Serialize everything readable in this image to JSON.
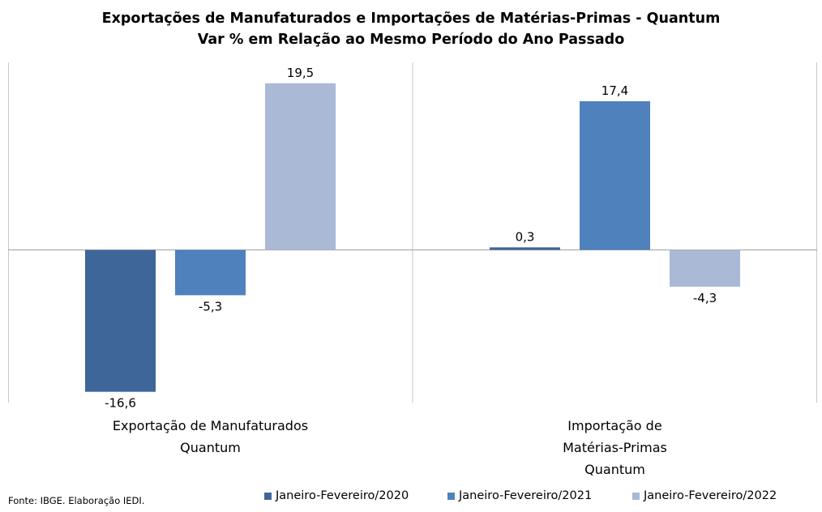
{
  "chart_data": {
    "type": "bar",
    "title": "Exportações de Manufaturados e Importações de Matérias-Primas - Quantum",
    "subtitle": "Var % em Relação ao Mesmo Período do Ano Passado",
    "categories": [
      [
        "Exportação de Manufaturados",
        "Quantum"
      ],
      [
        "Importação de",
        "Matérias-Primas",
        "Quantum"
      ]
    ],
    "series": [
      {
        "name": "Janeiro-Fevereiro/2020",
        "values": [
          -16.6,
          0.3
        ],
        "labels": [
          "-16,6",
          "0,3"
        ],
        "color": "#3f6699"
      },
      {
        "name": "Janeiro-Fevereiro/2021",
        "values": [
          -5.3,
          17.4
        ],
        "labels": [
          "-5,3",
          "17,4"
        ],
        "color": "#4f81bd"
      },
      {
        "name": "Janeiro-Fevereiro/2022",
        "values": [
          19.5,
          -4.3
        ],
        "labels": [
          "19,5",
          "-4,3"
        ],
        "color": "#aab9d6"
      }
    ],
    "ylim": [
      -17.5,
      21
    ],
    "grid": false,
    "legend_position": "bottom"
  },
  "source_note": "Fonte: IBGE. Elaboração IEDI."
}
